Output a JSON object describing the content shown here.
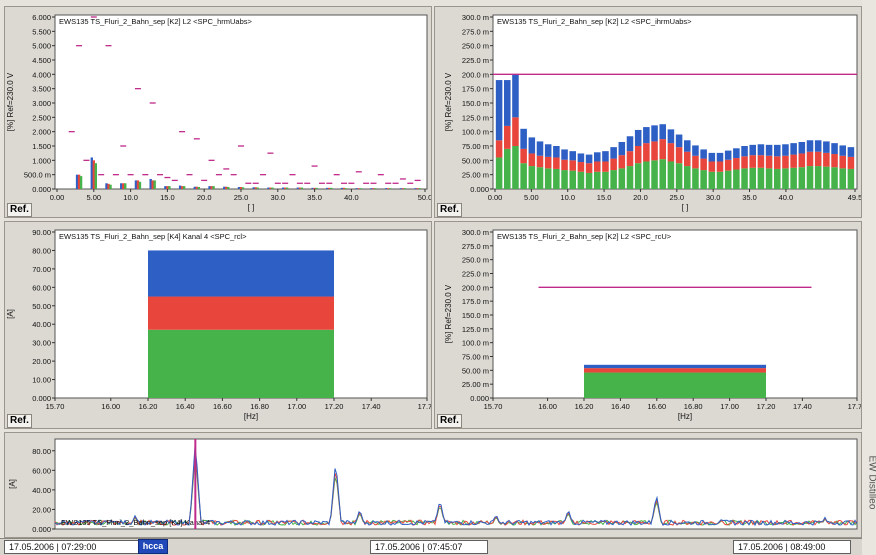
{
  "colors": {
    "blue": "#2e5fc4",
    "red": "#e8463c",
    "green": "#46b34a",
    "magenta": "#c0306a",
    "limit": "#c02a8a",
    "grid": "#ffffff",
    "axis": "#333333"
  },
  "side_text": "EW Distilleo",
  "status": {
    "left_time": "17.05.2006 | 07:29:00",
    "logo": "hcca",
    "mid_time": "17.05.2006 | 07:45:07",
    "right_time": "17.05.2006 | 08:49:00"
  },
  "ref_label": "Ref.",
  "chart_data": [
    {
      "type": "bar",
      "title": "EWS135  TS_Fluri_2_Bahn_sep  [K2] L2  <SPC_hrmUabs>",
      "ylabel": "[%] Ref=230.0 V",
      "xlabel": "[ ]",
      "ylim": [
        0,
        6
      ],
      "xlim": [
        0,
        50
      ],
      "yticks": [
        "0.000",
        "500.0 m",
        "1.000",
        "1.500",
        "2.000",
        "2.500",
        "3.000",
        "3.500",
        "4.000",
        "4.500",
        "5.000",
        "5.500",
        "6.000"
      ],
      "xticks": [
        "0.00",
        "5.00",
        "10.0",
        "15.0",
        "20.0",
        "25.0",
        "30.0",
        "35.0",
        "40.0",
        "50.0"
      ],
      "xtick_values": [
        0,
        5,
        10,
        15,
        20,
        25,
        30,
        35,
        40,
        50
      ],
      "series": [
        {
          "name": "blue",
          "values": [
            [
              3,
              0.5
            ],
            [
              5,
              1.1
            ],
            [
              7,
              0.2
            ],
            [
              9,
              0.2
            ],
            [
              11,
              0.3
            ],
            [
              13,
              0.35
            ],
            [
              15,
              0.1
            ],
            [
              17,
              0.12
            ],
            [
              19,
              0.08
            ],
            [
              21,
              0.1
            ],
            [
              23,
              0.08
            ],
            [
              25,
              0.07
            ],
            [
              27,
              0.06
            ],
            [
              29,
              0.05
            ],
            [
              31,
              0.05
            ],
            [
              33,
              0.05
            ],
            [
              35,
              0.04
            ],
            [
              37,
              0.04
            ],
            [
              39,
              0.04
            ],
            [
              41,
              0.03
            ],
            [
              43,
              0.03
            ],
            [
              45,
              0.03
            ],
            [
              47,
              0.03
            ],
            [
              49,
              0.03
            ]
          ]
        },
        {
          "name": "red",
          "values": [
            [
              3,
              0.5
            ],
            [
              5,
              1.0
            ],
            [
              7,
              0.18
            ],
            [
              9,
              0.2
            ],
            [
              11,
              0.3
            ],
            [
              13,
              0.3
            ],
            [
              15,
              0.1
            ],
            [
              17,
              0.1
            ],
            [
              19,
              0.08
            ],
            [
              21,
              0.1
            ],
            [
              23,
              0.08
            ],
            [
              25,
              0.07
            ],
            [
              27,
              0.06
            ],
            [
              29,
              0.05
            ],
            [
              31,
              0.05
            ],
            [
              33,
              0.05
            ],
            [
              35,
              0.04
            ],
            [
              37,
              0.04
            ],
            [
              39,
              0.04
            ],
            [
              41,
              0.03
            ],
            [
              43,
              0.03
            ],
            [
              45,
              0.03
            ],
            [
              47,
              0.03
            ],
            [
              49,
              0.03
            ]
          ]
        },
        {
          "name": "green",
          "values": [
            [
              3,
              0.45
            ],
            [
              5,
              0.9
            ],
            [
              7,
              0.15
            ],
            [
              9,
              0.2
            ],
            [
              11,
              0.25
            ],
            [
              13,
              0.3
            ],
            [
              15,
              0.1
            ],
            [
              17,
              0.1
            ],
            [
              19,
              0.07
            ],
            [
              21,
              0.1
            ],
            [
              23,
              0.07
            ],
            [
              25,
              0.06
            ],
            [
              27,
              0.05
            ],
            [
              29,
              0.05
            ],
            [
              31,
              0.05
            ],
            [
              33,
              0.05
            ],
            [
              35,
              0.04
            ],
            [
              37,
              0.04
            ],
            [
              39,
              0.03
            ],
            [
              41,
              0.03
            ],
            [
              43,
              0.03
            ],
            [
              45,
              0.03
            ],
            [
              47,
              0.03
            ],
            [
              49,
              0.03
            ]
          ]
        },
        {
          "name": "limit",
          "values": [
            [
              2,
              2.0
            ],
            [
              3,
              5.0
            ],
            [
              4,
              1.0
            ],
            [
              5,
              6.0
            ],
            [
              6,
              0.5
            ],
            [
              7,
              5.0
            ],
            [
              8,
              0.5
            ],
            [
              9,
              1.5
            ],
            [
              10,
              0.5
            ],
            [
              11,
              3.5
            ],
            [
              12,
              0.5
            ],
            [
              13,
              3.0
            ],
            [
              14,
              0.5
            ],
            [
              15,
              0.4
            ],
            [
              16,
              0.3
            ],
            [
              17,
              2.0
            ],
            [
              18,
              0.5
            ],
            [
              19,
              1.75
            ],
            [
              20,
              0.3
            ],
            [
              21,
              1.0
            ],
            [
              22,
              0.5
            ],
            [
              23,
              0.7
            ],
            [
              24,
              0.5
            ],
            [
              25,
              1.5
            ],
            [
              26,
              0.2
            ],
            [
              27,
              0.2
            ],
            [
              28,
              0.5
            ],
            [
              29,
              1.25
            ],
            [
              30,
              0.2
            ],
            [
              31,
              0.2
            ],
            [
              32,
              0.5
            ],
            [
              33,
              0.2
            ],
            [
              34,
              0.2
            ],
            [
              35,
              0.8
            ],
            [
              36,
              0.2
            ],
            [
              37,
              0.2
            ],
            [
              38,
              0.5
            ],
            [
              39,
              0.2
            ],
            [
              40,
              0.2
            ],
            [
              41,
              0.6
            ],
            [
              42,
              0.2
            ],
            [
              43,
              0.2
            ],
            [
              44,
              0.5
            ],
            [
              45,
              0.2
            ],
            [
              46,
              0.2
            ],
            [
              47,
              0.35
            ],
            [
              48,
              0.2
            ],
            [
              49,
              0.3
            ]
          ]
        }
      ]
    },
    {
      "type": "bar",
      "title": "EWS135  TS_Fluri_2_Bahn_sep  [K2] L2  <SPC_ihrmUabs>",
      "ylabel": "[%] Ref=230.0 V",
      "xlabel": "[ ]",
      "ylim": [
        0,
        300
      ],
      "xlim": [
        0,
        49.5
      ],
      "yticks": [
        "0.000",
        "25.00 m",
        "50.00 m",
        "75.00 m",
        "100.0 m",
        "125.0 m",
        "150.0 m",
        "175.0 m",
        "200.0 m",
        "225.0 m",
        "250.0 m",
        "275.0 m",
        "300.0 m"
      ],
      "xticks": [
        "0.00",
        "5.00",
        "10.0",
        "15.0",
        "20.0",
        "25.0",
        "30.0",
        "35.0",
        "40.0",
        "49.5"
      ],
      "xtick_values": [
        0,
        5,
        10,
        15,
        20,
        25,
        30,
        35,
        40,
        49.5
      ],
      "limit": 200,
      "series": [
        {
          "name": "green",
          "values": [
            55,
            70,
            75,
            45,
            40,
            38,
            36,
            35,
            33,
            32,
            30,
            28,
            30,
            30,
            33,
            36,
            40,
            45,
            48,
            50,
            52,
            48,
            45,
            40,
            36,
            33,
            30,
            30,
            32,
            34,
            36,
            37,
            37,
            36,
            35,
            36,
            37,
            38,
            40,
            40,
            39,
            38,
            36,
            35
          ]
        },
        {
          "name": "red",
          "values": [
            30,
            40,
            50,
            25,
            22,
            20,
            20,
            20,
            18,
            18,
            17,
            17,
            18,
            18,
            20,
            23,
            26,
            30,
            32,
            33,
            35,
            32,
            28,
            25,
            22,
            20,
            18,
            18,
            19,
            20,
            21,
            22,
            22,
            22,
            22,
            22,
            23,
            24,
            25,
            25,
            24,
            23,
            22,
            21
          ]
        },
        {
          "name": "blue",
          "values": [
            105,
            80,
            75,
            35,
            28,
            25,
            22,
            20,
            18,
            16,
            15,
            15,
            16,
            18,
            20,
            23,
            26,
            28,
            28,
            28,
            26,
            24,
            22,
            20,
            18,
            16,
            15,
            15,
            16,
            17,
            18,
            18,
            19,
            19,
            20,
            20,
            20,
            20,
            20,
            20,
            20,
            19,
            18,
            17
          ]
        }
      ]
    },
    {
      "type": "bar",
      "title": "EWS135  TS_Fluri_2_Bahn_sep  [K4] Kanal 4  <SPC_rcl>",
      "ylabel": "[A]",
      "xlabel": "[Hz]",
      "ylim": [
        0,
        90
      ],
      "xlim": [
        15.7,
        17.7
      ],
      "yticks": [
        "0.000",
        "10.00",
        "20.00",
        "30.00",
        "40.00",
        "50.00",
        "60.00",
        "70.00",
        "80.00",
        "90.00"
      ],
      "xticks": [
        "15.70",
        "16.00",
        "16.20",
        "16.40",
        "16.60",
        "16.80",
        "17.00",
        "17.20",
        "17.40",
        "17.70"
      ],
      "xtick_values": [
        15.7,
        16.0,
        16.2,
        16.4,
        16.6,
        16.8,
        17.0,
        17.2,
        17.4,
        17.7
      ],
      "bar": {
        "x0": 16.2,
        "x1": 17.2
      },
      "series": [
        {
          "name": "green",
          "value": 37
        },
        {
          "name": "red",
          "value": 55
        },
        {
          "name": "blue",
          "value": 80
        }
      ]
    },
    {
      "type": "bar",
      "title": "EWS135  TS_Fluri_2_Bahn_sep  [K2] L2  <SPC_rcU>",
      "ylabel": "[%] Ref=230.0 V",
      "xlabel": "[Hz]",
      "ylim": [
        0,
        300
      ],
      "xlim": [
        15.7,
        17.7
      ],
      "yticks": [
        "0.000",
        "25.00 m",
        "50.00 m",
        "75.00 m",
        "100.0 m",
        "125.0 m",
        "150.0 m",
        "175.0 m",
        "200.0 m",
        "225.0 m",
        "250.0 m",
        "275.0 m",
        "300.0 m"
      ],
      "xticks": [
        "15.70",
        "16.00",
        "16.20",
        "16.40",
        "16.60",
        "16.80",
        "17.00",
        "17.20",
        "17.40",
        "17.70"
      ],
      "xtick_values": [
        15.7,
        16.0,
        16.2,
        16.4,
        16.6,
        16.8,
        17.0,
        17.2,
        17.4,
        17.7
      ],
      "bar": {
        "x0": 16.2,
        "x1": 17.2
      },
      "limit": {
        "value": 200,
        "x0": 15.95,
        "x1": 17.45
      },
      "series": [
        {
          "name": "green",
          "value": 46
        },
        {
          "name": "red",
          "value": 54
        },
        {
          "name": "blue",
          "value": 60
        }
      ]
    },
    {
      "type": "line",
      "title": "EWS135  TS_Fluri_2_Bahn_sep  [K4] Kanal 4",
      "ylabel": "[A]",
      "ylim": [
        0,
        90
      ],
      "yticks": [
        "0.000",
        "20.00",
        "40.00",
        "60.00",
        "80.00"
      ],
      "ytick_values": [
        0,
        20,
        40,
        60,
        80
      ],
      "spikes": [
        [
          0.07,
          9
        ],
        [
          0.1,
          14
        ],
        [
          0.175,
          90
        ],
        [
          0.22,
          4
        ],
        [
          0.35,
          70
        ],
        [
          0.38,
          20
        ],
        [
          0.48,
          30
        ],
        [
          0.55,
          15
        ],
        [
          0.64,
          20
        ],
        [
          0.75,
          35
        ],
        [
          0.83,
          10
        ],
        [
          0.96,
          12
        ]
      ],
      "baseline": 5
    }
  ]
}
